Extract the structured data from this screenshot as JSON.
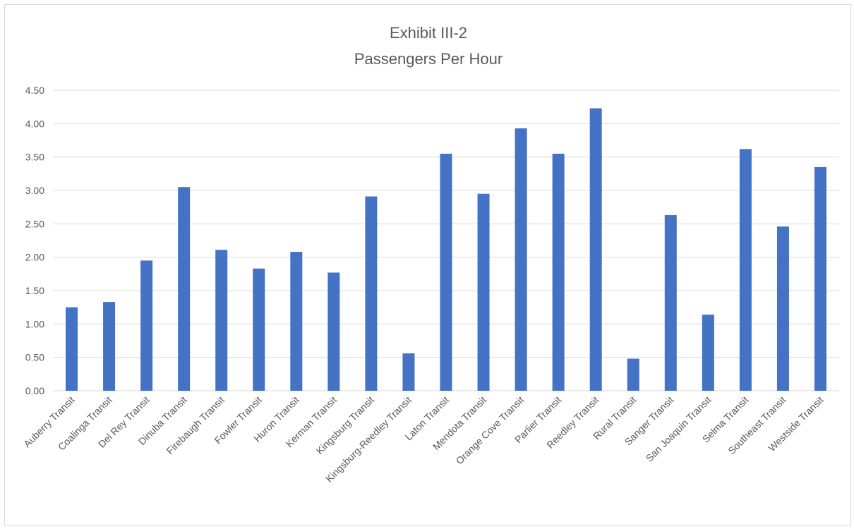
{
  "chart_data": {
    "type": "bar",
    "title": "Exhibit III-2",
    "subtitle": "Passengers Per Hour",
    "xlabel": "",
    "ylabel": "",
    "ylim": [
      0,
      4.5
    ],
    "yticks": [
      "0.00",
      "0.50",
      "1.00",
      "1.50",
      "2.00",
      "2.50",
      "3.00",
      "3.50",
      "4.00",
      "4.50"
    ],
    "grid": true,
    "legend": "none",
    "bar_color": "#4472c4",
    "categories": [
      "Auberry Transit",
      "Coalinga Transit",
      "Del Rey Transit",
      "Dinuba Transit",
      "Firebaugh Transit",
      "Fowler Transit",
      "Huron Transit",
      "Kerman Transit",
      "Kingsburg Transit",
      "Kingsburg-Reedley Transit",
      "Laton Transit",
      "Mendota Transit",
      "Orange Cove Transit",
      "Parlier Transit",
      "Reedley Transit",
      "Rural Transit",
      "Sanger Transit",
      "San Joaquin Transit",
      "Selma Transit",
      "Southeast Transit",
      "Westside Transit"
    ],
    "values": [
      1.25,
      1.33,
      1.95,
      3.05,
      2.11,
      1.83,
      2.08,
      1.77,
      2.91,
      0.56,
      3.55,
      2.95,
      3.93,
      3.55,
      4.23,
      0.48,
      2.63,
      1.14,
      3.62,
      2.46,
      3.35
    ]
  }
}
